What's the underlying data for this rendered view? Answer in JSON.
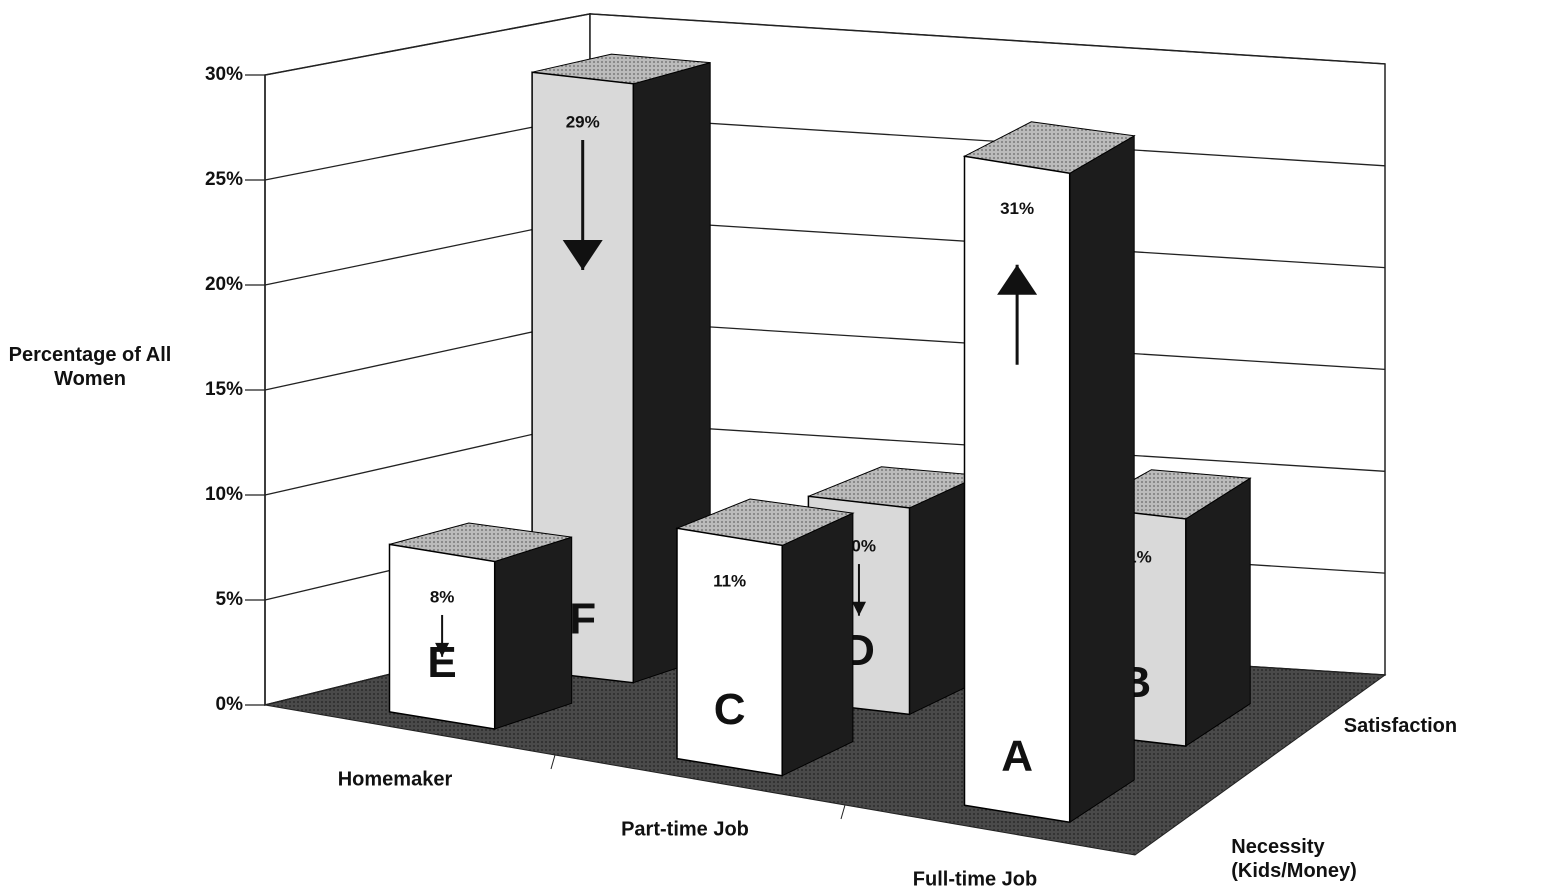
{
  "chart_data": {
    "type": "bar3d",
    "ylabel": "Percentage of All Women",
    "categories": [
      "Homemaker",
      "Part-time Job",
      "Full-time Job"
    ],
    "series": [
      {
        "name": "Necessity (Kids/Money)",
        "color": "#ffffff",
        "values": [
          8,
          11,
          31
        ],
        "value_labels": [
          "8%",
          "11%",
          "31%"
        ],
        "letters": [
          "E",
          "C",
          "A"
        ]
      },
      {
        "name": "Satisfaction",
        "color": "#d9d9d9",
        "values": [
          29,
          10,
          11
        ],
        "value_labels": [
          "29%",
          "10%",
          "11%"
        ],
        "letters": [
          "F",
          "D",
          "B"
        ]
      }
    ],
    "ylim": [
      0,
      30
    ],
    "yticks": [
      {
        "value": 0,
        "label": "0%"
      },
      {
        "value": 5,
        "label": "5%"
      },
      {
        "value": 10,
        "label": "10%"
      },
      {
        "value": 15,
        "label": "15%"
      },
      {
        "value": 20,
        "label": "20%"
      },
      {
        "value": 25,
        "label": "25%"
      },
      {
        "value": 30,
        "label": "30%"
      }
    ],
    "grid": true
  }
}
